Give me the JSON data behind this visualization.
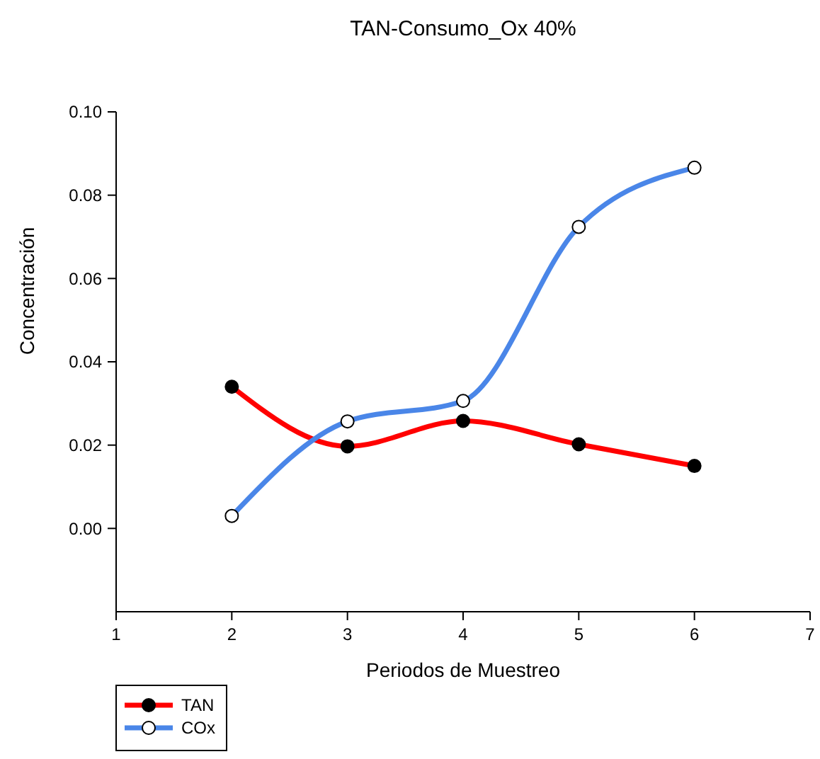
{
  "chart_data": {
    "type": "line",
    "title": "TAN-Consumo_Ox 40%",
    "xlabel": "Periodos de Muestreo",
    "ylabel": "Concentración",
    "x": [
      2,
      3,
      4,
      5,
      6
    ],
    "series": [
      {
        "name": "TAN",
        "color": "#ff0000",
        "values": [
          0.034,
          0.0197,
          0.0258,
          0.0202,
          0.015
        ]
      },
      {
        "name": "COx",
        "color": "#4a86e8",
        "values": [
          0.003,
          0.0257,
          0.0306,
          0.0724,
          0.0866
        ]
      }
    ],
    "xlim": [
      1,
      7
    ],
    "xticks": [
      1,
      2,
      3,
      4,
      5,
      6,
      7
    ],
    "ylim": [
      -0.02,
      0.1
    ],
    "yticks": [
      {
        "value": 0,
        "label": "0.00"
      },
      {
        "value": 0.02,
        "label": "0.02"
      },
      {
        "value": 0.04,
        "label": "0.04"
      },
      {
        "value": 0.06,
        "label": "0.06"
      },
      {
        "value": 0.08,
        "label": "0.08"
      },
      {
        "value": 0.1,
        "label": "0.10"
      }
    ],
    "grid": false,
    "legend": "bottom left",
    "marker": "circle",
    "line_style": "solid"
  }
}
